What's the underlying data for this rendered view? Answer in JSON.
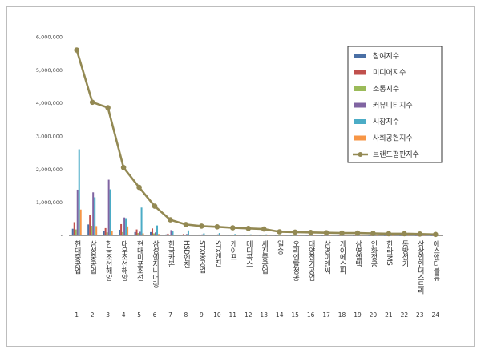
{
  "chart_data": {
    "type": "bar",
    "title": "",
    "xlabel": "",
    "ylabel": "",
    "ylim": [
      0,
      6000000
    ],
    "yticks": [
      "6,000,000",
      "5,000,000",
      "4,000,000",
      "3,000,000",
      "2,000,000",
      "1,000,000",
      "-"
    ],
    "ytick_values": [
      6000000,
      5000000,
      4000000,
      3000000,
      2000000,
      1000000,
      0
    ],
    "grid": false,
    "legend_position": "top-right",
    "categories": [
      "현대중공업",
      "삼성중공업",
      "한국조선해양",
      "대우조선해양",
      "현대미포조선",
      "삼성엔지니어링",
      "한국카본",
      "HSD엔진",
      "STX중공업",
      "STX엔진",
      "케이프",
      "메디콕스",
      "세진중공업",
      "일승",
      "오리엔탈정공",
      "대양전기공업",
      "삼영이엔씨",
      "케이에스피",
      "삼영엠텍",
      "인화정공",
      "한라IMS",
      "동방선기",
      "상상인인더스트리",
      "에스앤더블류"
    ],
    "ranks": [
      "1",
      "2",
      "3",
      "4",
      "5",
      "6",
      "7",
      "8",
      "9",
      "10",
      "11",
      "12",
      "13",
      "14",
      "15",
      "16",
      "17",
      "18",
      "19",
      "20",
      "21",
      "22",
      "23",
      "24"
    ],
    "series": [
      {
        "name": "참여지수",
        "kind": "bar",
        "color": "#4a6fa5",
        "values": [
          200000,
          330000,
          130000,
          170000,
          100000,
          100000,
          30000,
          20000,
          15000,
          10000,
          8000,
          6000,
          6000,
          4000,
          4000,
          4000,
          3000,
          3000,
          3000,
          2000,
          2000,
          2000,
          2000,
          2000
        ]
      },
      {
        "name": "미디어지수",
        "kind": "bar",
        "color": "#c0504d",
        "values": [
          400000,
          620000,
          220000,
          340000,
          180000,
          210000,
          50000,
          40000,
          25000,
          15000,
          12000,
          10000,
          9000,
          6000,
          6000,
          5000,
          5000,
          4000,
          4000,
          3000,
          3000,
          3000,
          3000,
          3000
        ]
      },
      {
        "name": "소통지수",
        "kind": "bar",
        "color": "#9bbb59",
        "values": [
          180000,
          290000,
          90000,
          100000,
          70000,
          60000,
          20000,
          15000,
          10000,
          8000,
          6000,
          5000,
          5000,
          3000,
          3000,
          3000,
          3000,
          2000,
          2000,
          2000,
          2000,
          2000,
          2000,
          2000
        ]
      },
      {
        "name": "커뮤니티지수",
        "kind": "bar",
        "color": "#8064a2",
        "values": [
          1380000,
          1300000,
          1680000,
          540000,
          110000,
          90000,
          160000,
          40000,
          30000,
          30000,
          20000,
          20000,
          15000,
          10000,
          8000,
          8000,
          6000,
          6000,
          5000,
          5000,
          4000,
          4000,
          4000,
          3000
        ]
      },
      {
        "name": "시장지수",
        "kind": "bar",
        "color": "#4bacc6",
        "values": [
          2600000,
          1150000,
          1390000,
          520000,
          840000,
          300000,
          120000,
          150000,
          60000,
          70000,
          40000,
          30000,
          30000,
          15000,
          12000,
          12000,
          10000,
          10000,
          10000,
          8000,
          8000,
          6000,
          6000,
          5000
        ]
      },
      {
        "name": "사회공헌지수",
        "kind": "bar",
        "color": "#f79646",
        "values": [
          780000,
          280000,
          130000,
          270000,
          60000,
          40000,
          20000,
          15000,
          10000,
          8000,
          6000,
          5000,
          5000,
          4000,
          3000,
          3000,
          3000,
          2000,
          2000,
          2000,
          2000,
          2000,
          2000,
          2000
        ]
      },
      {
        "name": "브랜드평판지수",
        "kind": "line",
        "color": "#938953",
        "values": [
          5600000,
          4020000,
          3860000,
          2050000,
          1450000,
          880000,
          470000,
          330000,
          280000,
          260000,
          230000,
          210000,
          190000,
          110000,
          100000,
          90000,
          80000,
          70000,
          70000,
          60000,
          50000,
          50000,
          40000,
          30000
        ]
      }
    ]
  }
}
